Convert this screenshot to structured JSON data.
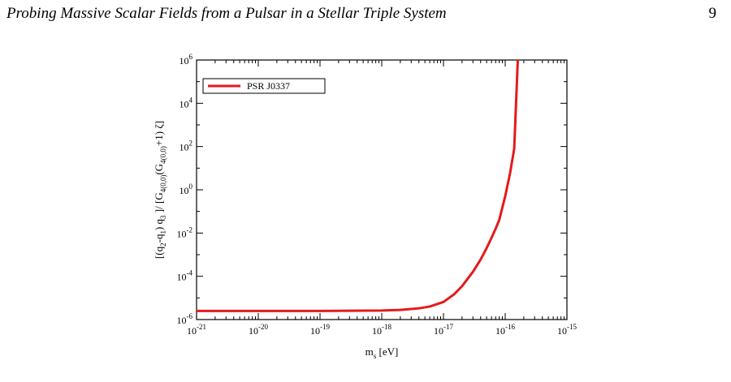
{
  "header": {
    "running_title": "Probing Massive Scalar Fields from a Pulsar in a Stellar Triple System",
    "page_number": "9"
  },
  "chart_data": {
    "type": "line",
    "xlabel": "m_s [eV]",
    "ylabel": "[(q_2-q_1) q_3 ]/ [G_4(0,0)(G_4(0,0)+1) ζ]",
    "xscale": "log",
    "yscale": "log",
    "xlim": [
      1e-21,
      1e-15
    ],
    "ylim": [
      1e-06,
      1000000.0
    ],
    "x_ticks": [
      "10^-21",
      "10^-20",
      "10^-19",
      "10^-18",
      "10^-17",
      "10^-16",
      "10^-15"
    ],
    "y_ticks": [
      "10^-6",
      "10^-4",
      "10^-2",
      "10^0",
      "10^2",
      "10^4",
      "10^6"
    ],
    "legend_position": "top-left",
    "grid": false,
    "series": [
      {
        "name": "PSR J0337",
        "color": "#e41a1c",
        "x": [
          1e-21,
          1e-20,
          1e-19,
          1e-18,
          2e-18,
          4e-18,
          6e-18,
          1e-17,
          1.5e-17,
          2e-17,
          3e-17,
          4e-17,
          5e-17,
          6e-17,
          7e-17,
          8e-17,
          1e-16,
          1.2e-16,
          1.4e-16,
          1.6e-16
        ],
        "y": [
          2.5e-06,
          2.5e-06,
          2.5e-06,
          2.6e-06,
          2.8e-06,
          3.3e-06,
          4e-06,
          6.5e-06,
          1.5e-05,
          3.5e-05,
          0.00016,
          0.0006,
          0.002,
          0.006,
          0.016,
          0.04,
          0.5,
          6.0,
          80,
          1000000
        ]
      }
    ]
  }
}
